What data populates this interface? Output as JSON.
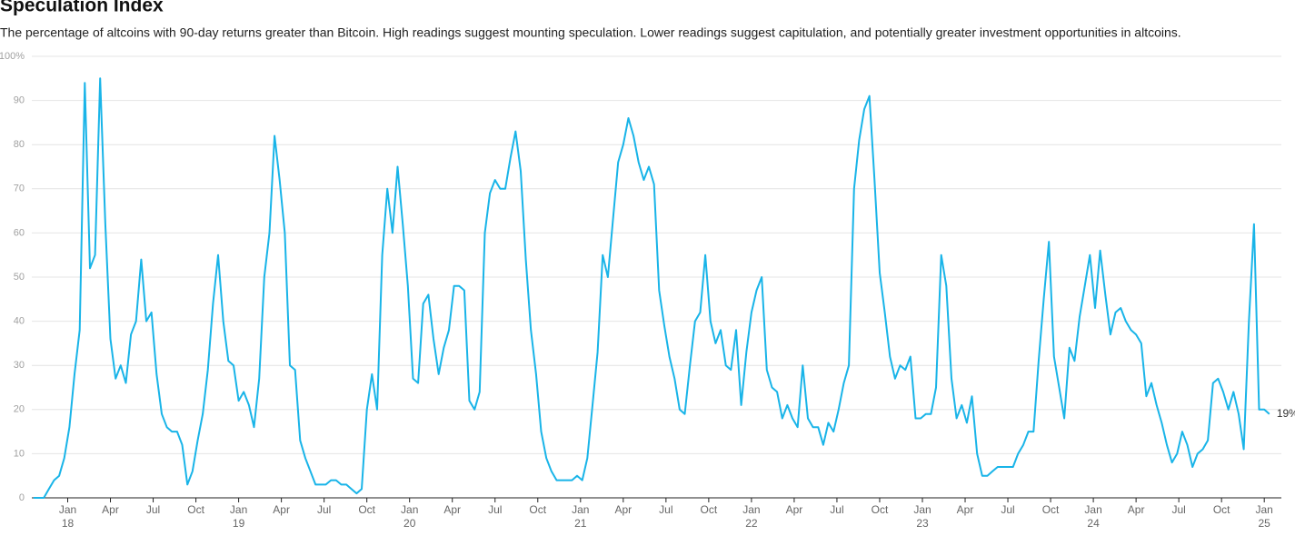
{
  "chart_data": {
    "type": "line",
    "title": "Speculation Index",
    "subtitle": "The percentage of altcoins with 90-day returns greater than Bitcoin. High readings suggest mounting speculation. Lower readings suggest capitulation, and potentially greater investment opportunities in altcoins.",
    "color": "#19b4e8",
    "grid": true,
    "end_label": "19%",
    "xlim": [
      2017.79,
      2025.1
    ],
    "ylim": [
      0,
      100
    ],
    "yticks": [
      0,
      10,
      20,
      30,
      40,
      50,
      60,
      70,
      80,
      90,
      {
        "value": 100,
        "label": "100%"
      }
    ],
    "xticks": [
      {
        "value": 2018,
        "label": "Jan",
        "year": "18"
      },
      {
        "value": 2018.25,
        "label": "Apr"
      },
      {
        "value": 2018.5,
        "label": "Jul"
      },
      {
        "value": 2018.75,
        "label": "Oct"
      },
      {
        "value": 2019,
        "label": "Jan",
        "year": "19"
      },
      {
        "value": 2019.25,
        "label": "Apr"
      },
      {
        "value": 2019.5,
        "label": "Jul"
      },
      {
        "value": 2019.75,
        "label": "Oct"
      },
      {
        "value": 2020,
        "label": "Jan",
        "year": "20"
      },
      {
        "value": 2020.25,
        "label": "Apr"
      },
      {
        "value": 2020.5,
        "label": "Jul"
      },
      {
        "value": 2020.75,
        "label": "Oct"
      },
      {
        "value": 2021,
        "label": "Jan",
        "year": "21"
      },
      {
        "value": 2021.25,
        "label": "Apr"
      },
      {
        "value": 2021.5,
        "label": "Jul"
      },
      {
        "value": 2021.75,
        "label": "Oct"
      },
      {
        "value": 2022,
        "label": "Jan",
        "year": "22"
      },
      {
        "value": 2022.25,
        "label": "Apr"
      },
      {
        "value": 2022.5,
        "label": "Jul"
      },
      {
        "value": 2022.75,
        "label": "Oct"
      },
      {
        "value": 2023,
        "label": "Jan",
        "year": "23"
      },
      {
        "value": 2023.25,
        "label": "Apr"
      },
      {
        "value": 2023.5,
        "label": "Jul"
      },
      {
        "value": 2023.75,
        "label": "Oct"
      },
      {
        "value": 2024,
        "label": "Jan",
        "year": "24"
      },
      {
        "value": 2024.25,
        "label": "Apr"
      },
      {
        "value": 2024.5,
        "label": "Jul"
      },
      {
        "value": 2024.75,
        "label": "Oct"
      },
      {
        "value": 2025,
        "label": "Jan",
        "year": "25"
      }
    ],
    "x": [
      2017.8,
      2017.83,
      2017.86,
      2017.89,
      2017.92,
      2017.95,
      2017.98,
      2018.01,
      2018.04,
      2018.07,
      2018.1,
      2018.13,
      2018.16,
      2018.19,
      2018.22,
      2018.25,
      2018.28,
      2018.31,
      2018.34,
      2018.37,
      2018.4,
      2018.43,
      2018.46,
      2018.49,
      2018.52,
      2018.55,
      2018.58,
      2018.61,
      2018.64,
      2018.67,
      2018.7,
      2018.73,
      2018.76,
      2018.79,
      2018.82,
      2018.85,
      2018.88,
      2018.91,
      2018.94,
      2018.97,
      2019.0,
      2019.03,
      2019.06,
      2019.09,
      2019.12,
      2019.15,
      2019.18,
      2019.21,
      2019.24,
      2019.27,
      2019.3,
      2019.33,
      2019.36,
      2019.39,
      2019.42,
      2019.45,
      2019.48,
      2019.51,
      2019.54,
      2019.57,
      2019.6,
      2019.63,
      2019.66,
      2019.69,
      2019.72,
      2019.75,
      2019.78,
      2019.81,
      2019.84,
      2019.87,
      2019.9,
      2019.93,
      2019.96,
      2019.99,
      2020.02,
      2020.05,
      2020.08,
      2020.11,
      2020.14,
      2020.17,
      2020.2,
      2020.23,
      2020.26,
      2020.29,
      2020.32,
      2020.35,
      2020.38,
      2020.41,
      2020.44,
      2020.47,
      2020.5,
      2020.53,
      2020.56,
      2020.59,
      2020.62,
      2020.65,
      2020.68,
      2020.71,
      2020.74,
      2020.77,
      2020.8,
      2020.83,
      2020.86,
      2020.89,
      2020.92,
      2020.95,
      2020.98,
      2021.01,
      2021.04,
      2021.07,
      2021.1,
      2021.13,
      2021.16,
      2021.19,
      2021.22,
      2021.25,
      2021.28,
      2021.31,
      2021.34,
      2021.37,
      2021.4,
      2021.43,
      2021.46,
      2021.49,
      2021.52,
      2021.55,
      2021.58,
      2021.61,
      2021.64,
      2021.67,
      2021.7,
      2021.73,
      2021.76,
      2021.79,
      2021.82,
      2021.85,
      2021.88,
      2021.91,
      2021.94,
      2021.97,
      2022.0,
      2022.03,
      2022.06,
      2022.09,
      2022.12,
      2022.15,
      2022.18,
      2022.21,
      2022.24,
      2022.27,
      2022.3,
      2022.33,
      2022.36,
      2022.39,
      2022.42,
      2022.45,
      2022.48,
      2022.51,
      2022.54,
      2022.57,
      2022.6,
      2022.63,
      2022.66,
      2022.69,
      2022.72,
      2022.75,
      2022.78,
      2022.81,
      2022.84,
      2022.87,
      2022.9,
      2022.93,
      2022.96,
      2022.99,
      2023.02,
      2023.05,
      2023.08,
      2023.11,
      2023.14,
      2023.17,
      2023.2,
      2023.23,
      2023.26,
      2023.29,
      2023.32,
      2023.35,
      2023.38,
      2023.41,
      2023.44,
      2023.47,
      2023.5,
      2023.53,
      2023.56,
      2023.59,
      2023.62,
      2023.65,
      2023.68,
      2023.71,
      2023.74,
      2023.77,
      2023.8,
      2023.83,
      2023.86,
      2023.89,
      2023.92,
      2023.95,
      2023.98,
      2024.01,
      2024.04,
      2024.07,
      2024.1,
      2024.13,
      2024.16,
      2024.19,
      2024.22,
      2024.25,
      2024.28,
      2024.31,
      2024.34,
      2024.37,
      2024.4,
      2024.43,
      2024.46,
      2024.49,
      2024.52,
      2024.55,
      2024.58,
      2024.61,
      2024.64,
      2024.67,
      2024.7,
      2024.73,
      2024.76,
      2024.79,
      2024.82,
      2024.85,
      2024.88,
      2024.91,
      2024.94,
      2024.97,
      2025.0,
      2025.03
    ],
    "values": [
      0,
      0,
      0,
      2,
      4,
      5,
      9,
      16,
      28,
      38,
      94,
      52,
      55,
      95,
      62,
      36,
      27,
      30,
      26,
      37,
      40,
      54,
      40,
      42,
      28,
      19,
      16,
      15,
      15,
      12,
      3,
      6,
      13,
      19,
      29,
      44,
      55,
      40,
      31,
      30,
      22,
      24,
      21,
      16,
      27,
      50,
      60,
      82,
      72,
      60,
      30,
      29,
      13,
      9,
      6,
      3,
      3,
      3,
      4,
      4,
      3,
      3,
      2,
      1,
      2,
      20,
      28,
      20,
      55,
      70,
      60,
      75,
      62,
      48,
      27,
      26,
      44,
      46,
      36,
      28,
      34,
      38,
      48,
      48,
      47,
      22,
      20,
      24,
      60,
      69,
      72,
      70,
      70,
      77,
      83,
      74,
      54,
      38,
      28,
      15,
      9,
      6,
      4,
      4,
      4,
      4,
      5,
      4,
      9,
      21,
      33,
      55,
      50,
      63,
      76,
      80,
      86,
      82,
      76,
      72,
      75,
      71,
      47,
      39,
      32,
      27,
      20,
      19,
      30,
      40,
      42,
      55,
      40,
      35,
      38,
      30,
      29,
      38,
      21,
      33,
      42,
      47,
      50,
      29,
      25,
      24,
      18,
      21,
      18,
      16,
      30,
      18,
      16,
      16,
      12,
      17,
      15,
      20,
      26,
      30,
      70,
      81,
      88,
      91,
      72,
      51,
      42,
      32,
      27,
      30,
      29,
      32,
      18,
      18,
      19,
      19,
      25,
      55,
      48,
      27,
      18,
      21,
      17,
      23,
      10,
      5,
      5,
      6,
      7,
      7,
      7,
      7,
      10,
      12,
      15,
      15,
      31,
      45,
      58,
      32,
      25,
      18,
      34,
      31,
      41,
      48,
      55,
      43,
      56,
      46,
      37,
      42,
      43,
      40,
      38,
      37,
      35,
      23,
      26,
      21,
      17,
      12,
      8,
      10,
      15,
      12,
      7,
      10,
      11,
      13,
      26,
      27,
      24,
      20,
      24,
      19,
      11,
      40,
      62,
      20,
      20,
      19
    ]
  }
}
